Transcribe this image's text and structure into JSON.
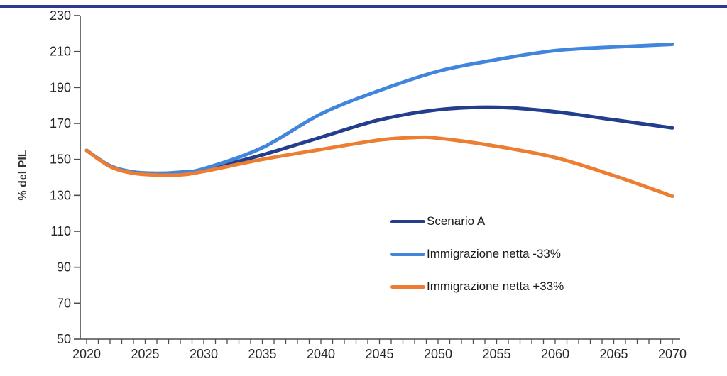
{
  "page": {
    "background_color": "#ffffff",
    "top_border_color": "#2b3990"
  },
  "axis": {
    "line_color": "#4d4d4d",
    "tick_label_color": "#262626"
  },
  "chart_data": {
    "type": "line",
    "title": "",
    "xlabel": "",
    "ylabel": "% del PIL",
    "xlim": [
      2020,
      2070
    ],
    "ylim": [
      50,
      230
    ],
    "x_ticks": [
      2020,
      2025,
      2030,
      2035,
      2040,
      2045,
      2050,
      2055,
      2060,
      2065,
      2070
    ],
    "x_minor_tick_step": 1,
    "y_ticks": [
      50,
      70,
      90,
      110,
      130,
      150,
      170,
      190,
      210,
      230
    ],
    "grid": false,
    "legend_position": "inside-center-right",
    "series": [
      {
        "name": "Scenario A",
        "color": "#233e8c",
        "points": [
          [
            2020,
            155
          ],
          [
            2022,
            146.3
          ],
          [
            2024,
            142.7
          ],
          [
            2026,
            142
          ],
          [
            2028,
            142.4
          ],
          [
            2030,
            144.2
          ],
          [
            2035,
            152.5
          ],
          [
            2040,
            162.3
          ],
          [
            2045,
            172
          ],
          [
            2050,
            177.6
          ],
          [
            2055,
            179
          ],
          [
            2060,
            176.5
          ],
          [
            2065,
            172
          ],
          [
            2070,
            167.5
          ]
        ]
      },
      {
        "name": "Immigrazione netta -33%",
        "color": "#4186dc",
        "points": [
          [
            2020,
            155
          ],
          [
            2022,
            146.5
          ],
          [
            2024,
            143
          ],
          [
            2026,
            142.3
          ],
          [
            2028,
            142.9
          ],
          [
            2030,
            144.8
          ],
          [
            2035,
            156.5
          ],
          [
            2040,
            175.3
          ],
          [
            2045,
            188.3
          ],
          [
            2050,
            199
          ],
          [
            2055,
            205.5
          ],
          [
            2060,
            210.5
          ],
          [
            2065,
            212.5
          ],
          [
            2070,
            214
          ]
        ]
      },
      {
        "name": "Immigrazione netta +33%",
        "color": "#ed7d31",
        "points": [
          [
            2020,
            155
          ],
          [
            2022,
            146
          ],
          [
            2024,
            142.3
          ],
          [
            2026,
            141.3
          ],
          [
            2028,
            141.4
          ],
          [
            2030,
            143.3
          ],
          [
            2035,
            150
          ],
          [
            2040,
            155.5
          ],
          [
            2045,
            160.8
          ],
          [
            2048,
            162.2
          ],
          [
            2050,
            161.8
          ],
          [
            2055,
            157.3
          ],
          [
            2060,
            151
          ],
          [
            2065,
            141
          ],
          [
            2070,
            129.5
          ]
        ]
      }
    ]
  }
}
